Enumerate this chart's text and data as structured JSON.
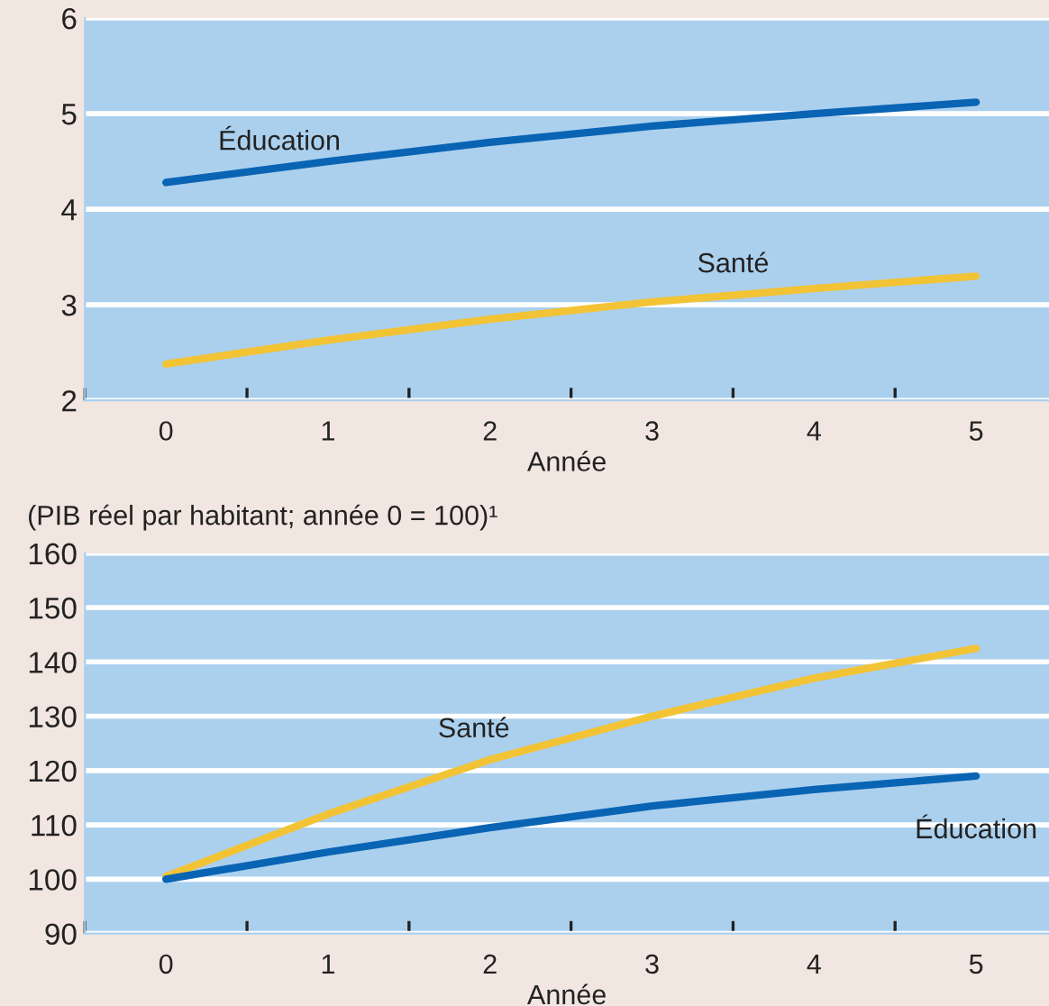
{
  "chart_data": [
    {
      "type": "line",
      "xlabel": "Année",
      "x": [
        0,
        1,
        2,
        3,
        4,
        5
      ],
      "xlim": [
        -0.5,
        5.45
      ],
      "xticks": [
        0,
        1,
        2,
        3,
        4,
        5,
        {
          "value": -0.5,
          "label": null
        },
        {
          "value": 0.5,
          "label": null
        },
        {
          "value": 1.5,
          "label": null
        },
        {
          "value": 2.5,
          "label": null
        },
        {
          "value": 3.5,
          "label": null
        },
        {
          "value": 4.5,
          "label": null
        }
      ],
      "ylim": [
        2,
        6
      ],
      "yticks": [
        2,
        3,
        4,
        5,
        6
      ],
      "grid": "y",
      "legend": false,
      "series": [
        {
          "name": "Éducation",
          "color": "#0a64b4",
          "values": [
            4.28,
            4.5,
            4.7,
            4.87,
            5.0,
            5.12
          ]
        },
        {
          "name": "Santé",
          "color": "#f2c335",
          "values": [
            2.38,
            2.63,
            2.85,
            3.03,
            3.17,
            3.3
          ]
        }
      ]
    },
    {
      "type": "line",
      "subtitle": "(PIB réel par habitant; année 0 = 100)¹",
      "xlabel": "Année",
      "x": [
        0,
        1,
        2,
        3,
        4,
        5
      ],
      "xlim": [
        -0.5,
        5.45
      ],
      "xticks": [
        0,
        1,
        2,
        3,
        4,
        5,
        {
          "value": -0.5,
          "label": null
        },
        {
          "value": 0.5,
          "label": null
        },
        {
          "value": 1.5,
          "label": null
        },
        {
          "value": 2.5,
          "label": null
        },
        {
          "value": 3.5,
          "label": null
        },
        {
          "value": 4.5,
          "label": null
        }
      ],
      "ylim": [
        90,
        160
      ],
      "yticks": [
        90,
        100,
        110,
        120,
        130,
        140,
        150,
        160
      ],
      "grid": "y",
      "legend": false,
      "series": [
        {
          "name": "Santé",
          "color": "#f2c335",
          "values": [
            100.5,
            112,
            122,
            130,
            137,
            142.5
          ]
        },
        {
          "name": "Éducation",
          "color": "#0a64b4",
          "values": [
            100,
            105,
            109.5,
            113.5,
            116.5,
            119
          ]
        }
      ]
    }
  ]
}
